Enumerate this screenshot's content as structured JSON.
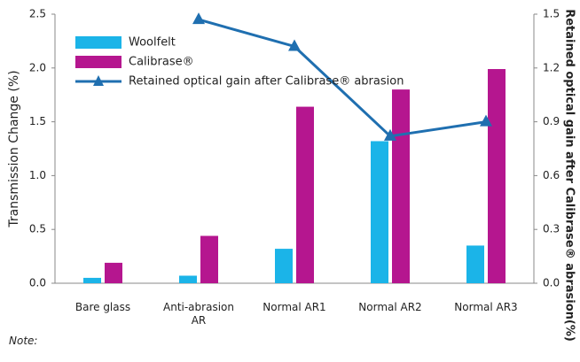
{
  "chart_data": {
    "type": "bar",
    "categories": [
      "Bare glass",
      "Anti-abrasion AR",
      "Normal AR1",
      "Normal AR2",
      "Normal AR3"
    ],
    "series": [
      {
        "name": "Woolfelt",
        "color": "#1bb4e8",
        "values": [
          0.05,
          0.07,
          0.32,
          1.32,
          0.35
        ]
      },
      {
        "name": "Calibrase®",
        "color": "#b5168f",
        "values": [
          0.19,
          0.44,
          1.64,
          1.8,
          1.99
        ]
      },
      {
        "name": "Retained optical gain after Calibrase® abrasion",
        "color": "#1f6fb0",
        "type": "line",
        "axis": "y2",
        "values": [
          null,
          1.47,
          1.32,
          0.82,
          0.9
        ]
      }
    ],
    "ylabel": "Transmission Change (%)",
    "y2label": "Retained optical gain after Calibrase® abrasion(%)",
    "ylim": [
      0,
      2.5
    ],
    "yticks": [
      {
        "value": 0,
        "label": "0.0"
      },
      0.5,
      {
        "value": 1,
        "label": "1.0"
      },
      1.5,
      {
        "value": 2,
        "label": "2.0"
      },
      2.5
    ],
    "y2lim": [
      0,
      1.5
    ],
    "y2ticks": [
      {
        "value": 0,
        "label": "0.0"
      },
      0.3,
      0.6,
      0.9,
      1.2,
      1.5
    ],
    "note": "Note:",
    "legend": "upper left",
    "grid": false
  }
}
